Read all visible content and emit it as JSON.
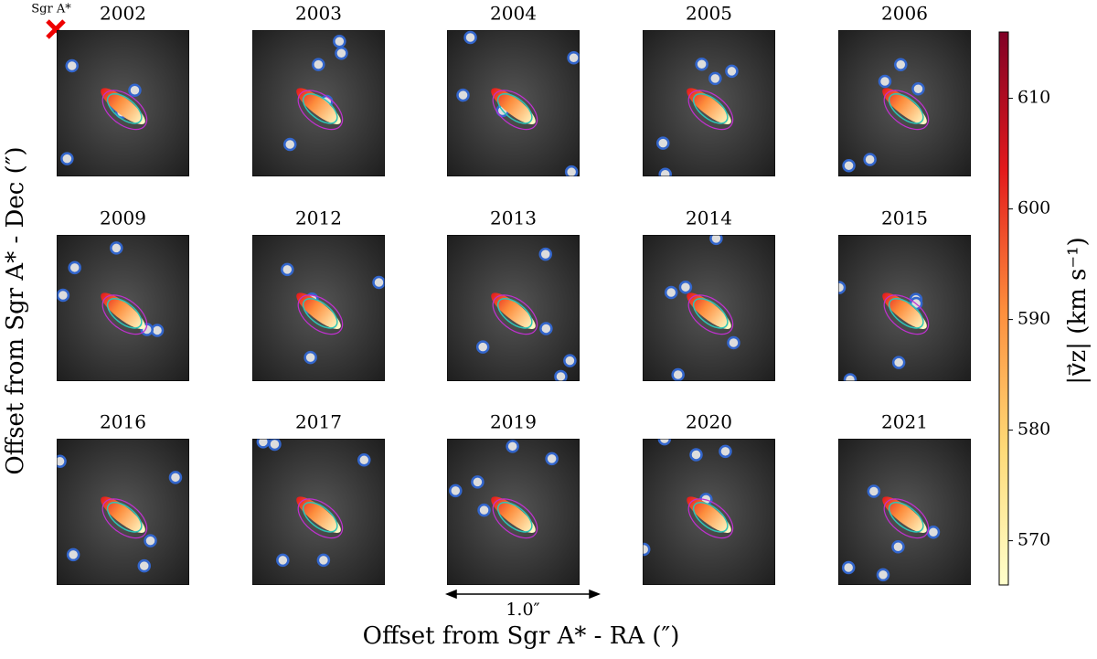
{
  "chart_data": {
    "type": "image-grid",
    "marker_label": "Sgr A*",
    "panels": [
      "2002",
      "2003",
      "2004",
      "2005",
      "2006",
      "2009",
      "2012",
      "2013",
      "2014",
      "2015",
      "2016",
      "2017",
      "2019",
      "2020",
      "2021"
    ],
    "xlabel": "Offset from Sgr A* - RA (″)",
    "ylabel": "Offset from Sgr A* - Dec (″)",
    "scale_label": "1.0″",
    "colorbar": {
      "label": "|v⃗z| (km s⁻¹)",
      "lim": [
        566,
        616
      ],
      "ticks": [
        570,
        580,
        590,
        600,
        610
      ],
      "colors": [
        "#ffffcc",
        "#fed976",
        "#fd8d3c",
        "#e31a1c",
        "#800026"
      ]
    }
  }
}
